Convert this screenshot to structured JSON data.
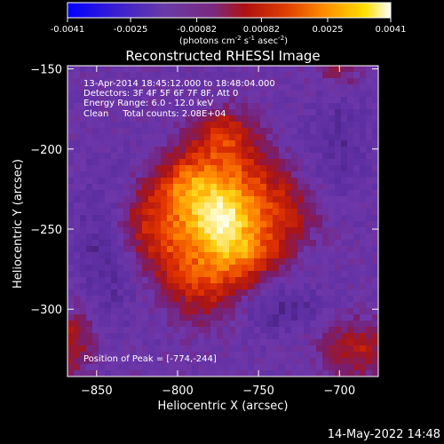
{
  "chart_data": {
    "type": "heatmap",
    "title": "Reconstructed RHESSI Image",
    "xlabel": "Heliocentric X (arcsec)",
    "ylabel": "Heliocentric Y (arcsec)",
    "xlim": [
      -868,
      -676
    ],
    "ylim": [
      -342,
      -148
    ],
    "xticks": [
      -850,
      -800,
      -750,
      -700
    ],
    "yticks": [
      -150,
      -200,
      -250,
      -300
    ],
    "colorbar": {
      "min": -0.0041,
      "max": 0.0041,
      "tick_values": [
        -0.0041,
        -0.0025,
        -0.00082,
        0.00082,
        0.0025,
        0.0041
      ],
      "tick_labels": [
        "-0.0041",
        "-0.0025",
        "-0.00082",
        "0.00082",
        "0.0025",
        "0.0041"
      ],
      "units_label": "(photons cm",
      "units_parts": [
        "(photons cm",
        "-2",
        " s",
        "-1",
        " asec",
        "-2",
        ")"
      ]
    },
    "annotations": [
      "13-Apr-2014 18:45:12.000 to 18:48:04.000",
      "Detectors: 3F 4F 5F 6F 7F 8F, Att 0",
      "Energy Range: 6.0 - 12.0 keV",
      "Clean     Total counts: 2.08E+04"
    ],
    "peak_label": "Position of Peak = [-774,-244]",
    "peak": [
      -774,
      -244
    ],
    "colors": {
      "background": "#000000",
      "foreground": "#ffffff",
      "colormap": [
        "#0000ff",
        "#3a1fd0",
        "#6a3aa8",
        "#7a2a80",
        "#a01818",
        "#d83000",
        "#ff8000",
        "#ffd800",
        "#ffffe0"
      ]
    }
  },
  "footer": {
    "timestamp": "14-May-2022 14:48"
  }
}
